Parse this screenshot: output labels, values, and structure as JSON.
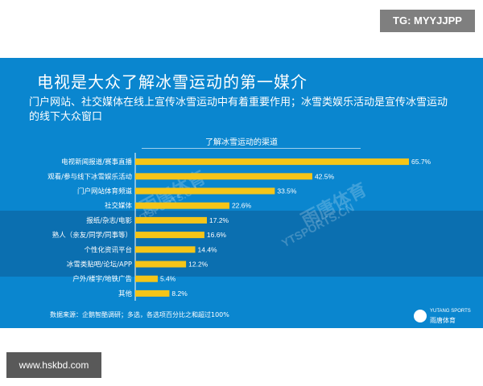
{
  "tag_badge": "TG: MYYJJPP",
  "site_badge": "www.hskbd.com",
  "slide": {
    "title": "电视是大众了解冰雪运动的第一媒介",
    "subtitle": "门户网站、社交媒体在线上宣传冰雪运动中有着重要作用；冰雪类娱乐活动是宣传冰雪运动的线下大众窗口",
    "footnote": "数据来源：企鹅智酷调研；多选，各选项百分比之和超过100%",
    "logo_en": "YUTANG SPORTS",
    "logo_cn": "雨唐体育",
    "watermark_cn": "雨唐体育",
    "watermark_en": "YTSPORTS.CN"
  },
  "colors": {
    "background": "#0a86cf",
    "band": "#0b6fb0",
    "bar": "#f5c518",
    "text": "#ffffff"
  },
  "chart_data": {
    "type": "bar",
    "orientation": "horizontal",
    "title": "了解冰雪运动的渠道",
    "categories": [
      "电视新闻报道/赛事直播",
      "观看/参与线下冰雪娱乐活动",
      "门户网站体育频道",
      "社交媒体",
      "报纸/杂志/电影",
      "熟人（亲友/同学/同事等）",
      "个性化资讯平台",
      "冰雪类贴吧/论坛/APP",
      "户外/楼宇/地铁广告",
      "其他"
    ],
    "values": [
      65.7,
      42.5,
      33.5,
      22.6,
      17.2,
      16.6,
      14.4,
      12.2,
      5.4,
      8.2
    ],
    "value_labels": [
      "65.7%",
      "42.5%",
      "33.5%",
      "22.6%",
      "17.2%",
      "16.6%",
      "14.4%",
      "12.2%",
      "5.4%",
      "8.2%"
    ],
    "unit": "%",
    "xlim": [
      0,
      70
    ],
    "grid": false,
    "legend": "none"
  }
}
